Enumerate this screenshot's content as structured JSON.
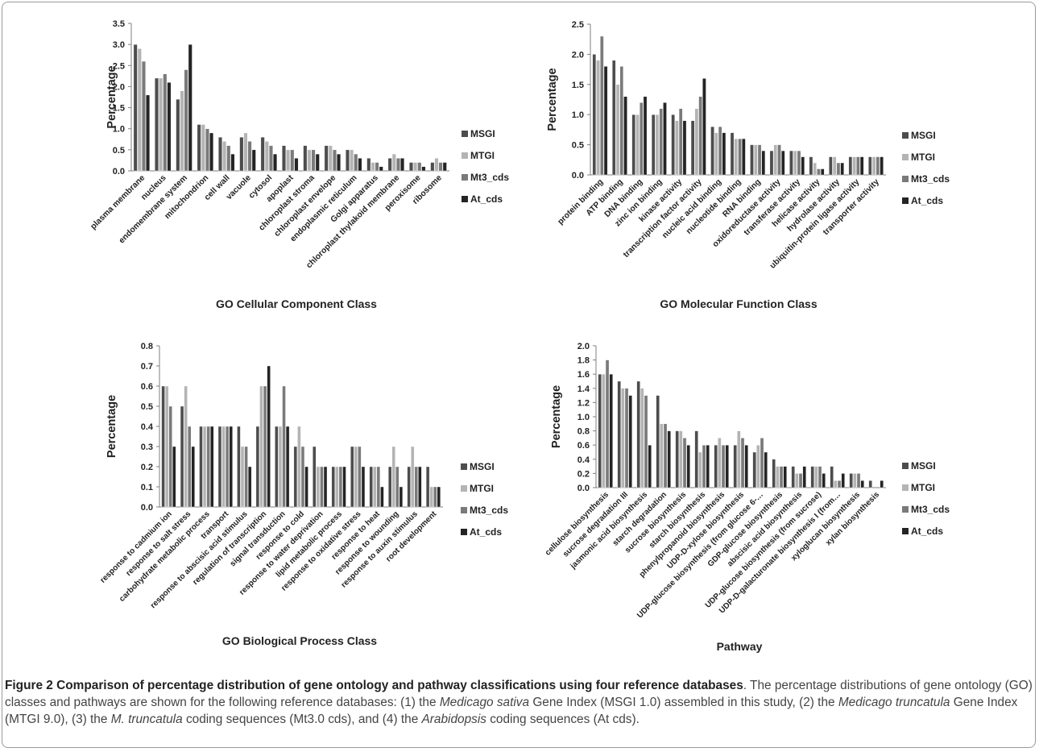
{
  "series_names": [
    "MSGI",
    "MTGI",
    "Mt3_cds",
    "At_cds"
  ],
  "series_colors": [
    "#4d4d4d",
    "#b4b4b4",
    "#7a7a7a",
    "#242424"
  ],
  "chart_data": [
    {
      "type": "bar",
      "title": "GO Cellular Component Class",
      "ylabel": "Percentage",
      "ylim": [
        0,
        3.5
      ],
      "ytick_step": 0.5,
      "ytick_decimals": 1,
      "categories": [
        "plasma membrane",
        "nucleus",
        "endomembrane system",
        "mitochondrion",
        "cell wall",
        "vacuole",
        "cytosol",
        "apoplast",
        "chloroplast stroma",
        "chloroplast envelope",
        "endoplasmic reticulum",
        "Golgi apparatus",
        "chloroplast thylakoid membrane",
        "peroxisome",
        "ribosome"
      ],
      "series": [
        {
          "name": "MSGI",
          "values": [
            3.0,
            2.2,
            1.7,
            1.1,
            0.8,
            0.8,
            0.8,
            0.6,
            0.6,
            0.6,
            0.5,
            0.3,
            0.3,
            0.2,
            0.2
          ]
        },
        {
          "name": "MTGI",
          "values": [
            2.9,
            2.2,
            1.9,
            1.1,
            0.7,
            0.9,
            0.7,
            0.5,
            0.5,
            0.6,
            0.5,
            0.2,
            0.4,
            0.2,
            0.3
          ]
        },
        {
          "name": "Mt3_cds",
          "values": [
            2.6,
            2.3,
            2.4,
            1.0,
            0.6,
            0.7,
            0.6,
            0.5,
            0.5,
            0.5,
            0.4,
            0.2,
            0.3,
            0.2,
            0.2
          ]
        },
        {
          "name": "At_cds",
          "values": [
            1.8,
            2.1,
            3.0,
            0.9,
            0.4,
            0.5,
            0.4,
            0.3,
            0.4,
            0.4,
            0.3,
            0.1,
            0.3,
            0.1,
            0.2
          ]
        }
      ],
      "legend": "right"
    },
    {
      "type": "bar",
      "title": "GO Molecular Function Class",
      "ylabel": "Percentage",
      "ylim": [
        0,
        2.5
      ],
      "ytick_step": 0.5,
      "ytick_decimals": 1,
      "categories": [
        "protein binding",
        "ATP binding",
        "DNA binding",
        "zinc ion binding",
        "kinase activity",
        "transcription factor activity",
        "nucleic acid binding",
        "nucleotide binding",
        "RNA binding",
        "oxidoreductase activity",
        "transferase activity",
        "helicase activity",
        "hydrolase activity",
        "ubiquitin-protein ligase activity",
        "transporter activity"
      ],
      "series": [
        {
          "name": "MSGI",
          "values": [
            2.0,
            1.9,
            1.0,
            1.0,
            1.0,
            0.9,
            0.8,
            0.7,
            0.5,
            0.4,
            0.4,
            0.3,
            0.3,
            0.3,
            0.3
          ]
        },
        {
          "name": "MTGI",
          "values": [
            1.9,
            1.5,
            1.0,
            1.0,
            0.9,
            1.1,
            0.7,
            0.6,
            0.5,
            0.5,
            0.4,
            0.2,
            0.3,
            0.3,
            0.3
          ]
        },
        {
          "name": "Mt3_cds",
          "values": [
            2.3,
            1.8,
            1.2,
            1.1,
            1.1,
            1.3,
            0.8,
            0.6,
            0.5,
            0.5,
            0.4,
            0.1,
            0.2,
            0.3,
            0.3
          ]
        },
        {
          "name": "At_cds",
          "values": [
            1.8,
            1.3,
            1.3,
            1.2,
            0.9,
            1.6,
            0.7,
            0.6,
            0.4,
            0.4,
            0.3,
            0.1,
            0.2,
            0.3,
            0.3
          ]
        }
      ],
      "legend": "right"
    },
    {
      "type": "bar",
      "title": "GO Biological Process Class",
      "ylabel": "Percentage",
      "ylim": [
        0,
        0.8
      ],
      "ytick_step": 0.1,
      "ytick_decimals": 1,
      "categories": [
        "response to cadmium ion",
        "response to salt stress",
        "carbohydrate metabolic process",
        "transport",
        "response to abscisic acid stimulus",
        "regulation of transcription",
        "signal transduction",
        "response to cold",
        "response to water deprivation",
        "lipid metabolic process",
        "response to oxidative stress",
        "response to heat",
        "response to wounding",
        "response to auxin stimulus",
        "root development"
      ],
      "series": [
        {
          "name": "MSGI",
          "values": [
            0.6,
            0.5,
            0.4,
            0.4,
            0.4,
            0.4,
            0.4,
            0.3,
            0.3,
            0.2,
            0.3,
            0.2,
            0.2,
            0.2,
            0.2
          ]
        },
        {
          "name": "MTGI",
          "values": [
            0.6,
            0.6,
            0.4,
            0.4,
            0.3,
            0.6,
            0.4,
            0.4,
            0.2,
            0.2,
            0.3,
            0.2,
            0.3,
            0.3,
            0.1
          ]
        },
        {
          "name": "Mt3_cds",
          "values": [
            0.5,
            0.4,
            0.4,
            0.4,
            0.3,
            0.6,
            0.6,
            0.3,
            0.2,
            0.2,
            0.3,
            0.2,
            0.2,
            0.2,
            0.1
          ]
        },
        {
          "name": "At_cds",
          "values": [
            0.3,
            0.3,
            0.4,
            0.4,
            0.2,
            0.7,
            0.4,
            0.2,
            0.2,
            0.2,
            0.2,
            0.1,
            0.1,
            0.2,
            0.1
          ]
        }
      ],
      "legend": "right"
    },
    {
      "type": "bar",
      "title": "Pathway",
      "ylabel": "Percentage",
      "ylim": [
        0,
        2.0
      ],
      "ytick_step": 0.2,
      "ytick_decimals": 1,
      "categories": [
        "cellulose biosynthesis",
        "sucrose degradation III",
        "jasmonic acid biosynthesis",
        "starch degradation",
        "sucrose biosynthesis",
        "starch biosynthesis",
        "phenylpropanoid biosynthesis",
        "UDP-D-xylose biosynthesis",
        "UDP-glucose biosynthesis (from glucose 6-…",
        "GDP-glucose biosynthesis",
        "abscisic acid biosynthesis",
        "UDP-glucose biosynthesis (from sucrose)",
        "UDP-D-galacturonate biosynthesis I (from…",
        "xyloglucan biosynthesis",
        "xylan biosynthesis"
      ],
      "series": [
        {
          "name": "MSGI",
          "values": [
            1.6,
            1.5,
            1.5,
            1.3,
            0.8,
            0.8,
            0.6,
            0.6,
            0.5,
            0.4,
            0.3,
            0.3,
            0.3,
            0.2,
            0.1
          ]
        },
        {
          "name": "MTGI",
          "values": [
            1.6,
            1.4,
            1.4,
            0.9,
            0.8,
            0.5,
            0.7,
            0.8,
            0.6,
            0.3,
            0.2,
            0.3,
            0.1,
            0.2,
            0.0
          ]
        },
        {
          "name": "Mt3_cds",
          "values": [
            1.8,
            1.4,
            1.3,
            0.9,
            0.7,
            0.6,
            0.6,
            0.7,
            0.7,
            0.3,
            0.2,
            0.3,
            0.1,
            0.2,
            0.0
          ]
        },
        {
          "name": "At_cds",
          "values": [
            1.6,
            1.3,
            0.6,
            0.8,
            0.6,
            0.6,
            0.6,
            0.6,
            0.5,
            0.3,
            0.3,
            0.2,
            0.2,
            0.1,
            0.1
          ]
        }
      ],
      "legend": "right"
    }
  ],
  "caption": {
    "figure_label": "Figure 2",
    "title": "Comparison of percentage distribution of gene ontology and pathway classifications using four reference databases",
    "body_1": ". The percentage distributions of gene ontology (GO) classes and pathways are shown for the following reference databases: (1) the ",
    "ital_1": "Medicago sativa",
    "body_2": " Gene Index (MSGI 1.0) assembled in this study, (2) the ",
    "ital_2": "Medicago truncatula",
    "body_3": " Gene Index (MTGI 9.0), (3) the ",
    "ital_3": "M. truncatula",
    "body_4": " coding sequences (Mt3.0 cds), and (4) the ",
    "ital_4": "Arabidopsis",
    "body_5": " coding sequences (At cds)."
  }
}
